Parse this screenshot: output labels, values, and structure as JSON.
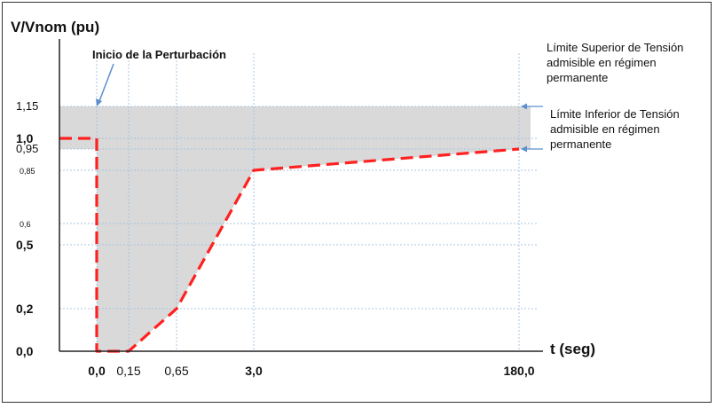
{
  "chart_data": {
    "type": "line",
    "ylabel": "V/Vnom (pu)",
    "xlabel": "t (seg)",
    "annotation": "Inicio de la Perturbación",
    "band_upper_label": "Límite Superior de Tensión admisible en régimen permanente",
    "band_lower_label": "Límite Inferior de Tensión admisible en régimen permanente",
    "x_ticks": [
      {
        "label": "0,0",
        "bold": true
      },
      {
        "label": "0,15",
        "bold": false
      },
      {
        "label": "0,65",
        "bold": false
      },
      {
        "label": "3,0",
        "bold": true
      },
      {
        "label": "180,0",
        "bold": true
      }
    ],
    "y_ticks": [
      {
        "value": 0.0,
        "label": "0,0",
        "bold": true
      },
      {
        "value": 0.2,
        "label": "0,2",
        "bold": true
      },
      {
        "value": 0.5,
        "label": "0,5",
        "bold": true
      },
      {
        "value": 0.6,
        "label": "0,6",
        "bold": false
      },
      {
        "value": 0.85,
        "label": "0,85",
        "bold": false
      },
      {
        "value": 0.95,
        "label": "0,95",
        "bold": false
      },
      {
        "value": 1.0,
        "label": "1,0",
        "bold": true
      },
      {
        "value": 1.15,
        "label": "1,15",
        "bold": false
      }
    ],
    "ylim": [
      0,
      1.35
    ],
    "band": [
      0.95,
      1.15
    ],
    "series": [
      {
        "points": [
          {
            "t": "pre",
            "v": 1.0
          },
          {
            "t": "0,0",
            "v": 1.0
          },
          {
            "t": "0,0",
            "v": 0.0
          },
          {
            "t": "0,15",
            "v": 0.0
          },
          {
            "t": "0,65",
            "v": 0.2
          },
          {
            "t": "3,0",
            "v": 0.85
          },
          {
            "t": "180,0",
            "v": 0.95
          }
        ]
      }
    ],
    "colors": {
      "curve": "#ff2020",
      "shade": "#d9d9d9",
      "grid": "#a8c4e0",
      "arrow": "#5b8fcf"
    }
  }
}
